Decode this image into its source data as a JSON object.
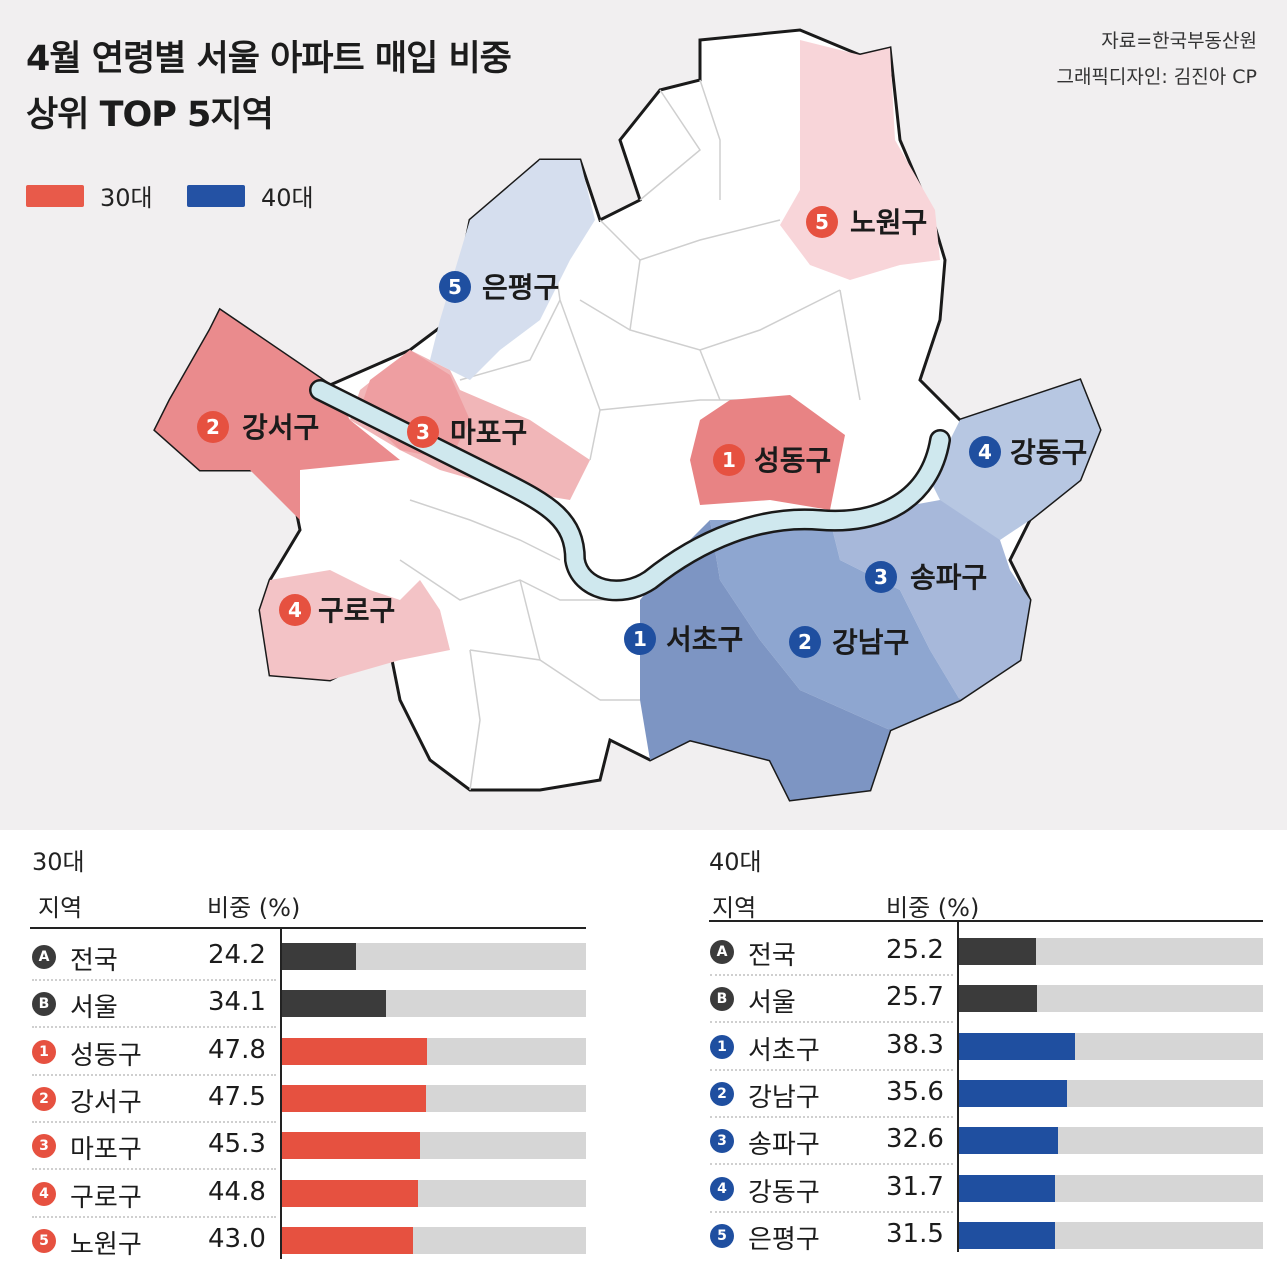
{
  "header": {
    "title_line1": "4월 연령별 서울 아파트 매입 비중",
    "title_line2": "상위 TOP 5지역",
    "source": "자료=한국부동산원",
    "designer": "그래픽디자인: 김진아 CP"
  },
  "legend": [
    {
      "label": "30대",
      "color": "#e85a4a"
    },
    {
      "label": "40대",
      "color": "#2452a4"
    }
  ],
  "map": {
    "labels": [
      {
        "rank": "5",
        "name": "은평구",
        "group": "40대"
      },
      {
        "rank": "5",
        "name": "노원구",
        "group": "30대"
      },
      {
        "rank": "2",
        "name": "강서구",
        "group": "30대"
      },
      {
        "rank": "3",
        "name": "마포구",
        "group": "30대"
      },
      {
        "rank": "1",
        "name": "성동구",
        "group": "30대"
      },
      {
        "rank": "4",
        "name": "강동구",
        "group": "40대"
      },
      {
        "rank": "3",
        "name": "송파구",
        "group": "40대"
      },
      {
        "rank": "4",
        "name": "구로구",
        "group": "30대"
      },
      {
        "rank": "1",
        "name": "서초구",
        "group": "40대"
      },
      {
        "rank": "2",
        "name": "강남구",
        "group": "40대"
      }
    ]
  },
  "chart_data": [
    {
      "type": "bar",
      "title": "30대",
      "col_region": "지역",
      "col_share": "비중 (%)",
      "xlim": [
        0,
        100
      ],
      "rows": [
        {
          "badge": "A",
          "name": "전국",
          "value": 24.2,
          "value_text": "24.2",
          "color": "#3b3b3b"
        },
        {
          "badge": "B",
          "name": "서울",
          "value": 34.1,
          "value_text": "34.1",
          "color": "#3b3b3b"
        },
        {
          "badge": "1",
          "name": "성동구",
          "value": 47.8,
          "value_text": "47.8",
          "color": "#e65140"
        },
        {
          "badge": "2",
          "name": "강서구",
          "value": 47.5,
          "value_text": "47.5",
          "color": "#e65140"
        },
        {
          "badge": "3",
          "name": "마포구",
          "value": 45.3,
          "value_text": "45.3",
          "color": "#e65140"
        },
        {
          "badge": "4",
          "name": "구로구",
          "value": 44.8,
          "value_text": "44.8",
          "color": "#e65140"
        },
        {
          "badge": "5",
          "name": "노원구",
          "value": 43.0,
          "value_text": "43.0",
          "color": "#e65140"
        }
      ]
    },
    {
      "type": "bar",
      "title": "40대",
      "col_region": "지역",
      "col_share": "비중 (%)",
      "xlim": [
        0,
        100
      ],
      "rows": [
        {
          "badge": "A",
          "name": "전국",
          "value": 25.2,
          "value_text": "25.2",
          "color": "#3b3b3b"
        },
        {
          "badge": "B",
          "name": "서울",
          "value": 25.7,
          "value_text": "25.7",
          "color": "#3b3b3b"
        },
        {
          "badge": "1",
          "name": "서초구",
          "value": 38.3,
          "value_text": "38.3",
          "color": "#1f4fa0"
        },
        {
          "badge": "2",
          "name": "강남구",
          "value": 35.6,
          "value_text": "35.6",
          "color": "#1f4fa0"
        },
        {
          "badge": "3",
          "name": "송파구",
          "value": 32.6,
          "value_text": "32.6",
          "color": "#1f4fa0"
        },
        {
          "badge": "4",
          "name": "강동구",
          "value": 31.7,
          "value_text": "31.7",
          "color": "#1f4fa0"
        },
        {
          "badge": "5",
          "name": "은평구",
          "value": 31.5,
          "value_text": "31.5",
          "color": "#1f4fa0"
        }
      ]
    }
  ]
}
